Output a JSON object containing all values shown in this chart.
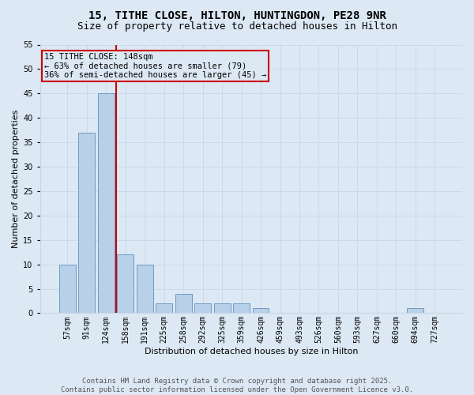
{
  "title_line1": "15, TITHE CLOSE, HILTON, HUNTINGDON, PE28 9NR",
  "title_line2": "Size of property relative to detached houses in Hilton",
  "xlabel": "Distribution of detached houses by size in Hilton",
  "ylabel": "Number of detached properties",
  "bar_labels": [
    "57sqm",
    "91sqm",
    "124sqm",
    "158sqm",
    "191sqm",
    "225sqm",
    "258sqm",
    "292sqm",
    "325sqm",
    "359sqm",
    "426sqm",
    "459sqm",
    "493sqm",
    "526sqm",
    "560sqm",
    "593sqm",
    "627sqm",
    "660sqm",
    "694sqm",
    "727sqm"
  ],
  "bar_values": [
    10,
    37,
    45,
    12,
    10,
    2,
    4,
    2,
    2,
    2,
    1,
    0,
    0,
    0,
    0,
    0,
    0,
    0,
    1,
    0
  ],
  "bar_color": "#b8d0e8",
  "bar_edge_color": "#6090c0",
  "grid_color": "#c8d8e8",
  "background_color": "#dce8f4",
  "vline_color": "#cc0000",
  "annotation_text": "15 TITHE CLOSE: 148sqm\n← 63% of detached houses are smaller (79)\n36% of semi-detached houses are larger (45) →",
  "annotation_box_color": "#cc0000",
  "ylim": [
    0,
    55
  ],
  "yticks": [
    0,
    5,
    10,
    15,
    20,
    25,
    30,
    35,
    40,
    45,
    50,
    55
  ],
  "footer_line1": "Contains HM Land Registry data © Crown copyright and database right 2025.",
  "footer_line2": "Contains public sector information licensed under the Open Government Licence v3.0.",
  "title_fontsize": 10,
  "subtitle_fontsize": 9,
  "axis_label_fontsize": 8,
  "tick_fontsize": 7,
  "annotation_fontsize": 7.5,
  "footer_fontsize": 6.5,
  "ylabel_fontsize": 8
}
